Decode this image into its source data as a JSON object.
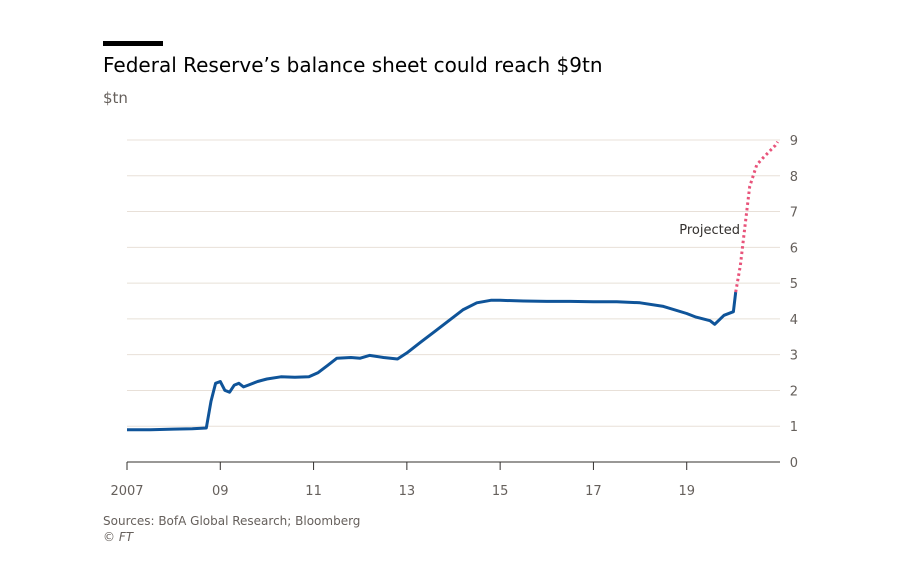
{
  "chart_data": {
    "type": "line",
    "title": "Federal Reserve’s balance sheet could reach $9tn",
    "unit_label": "$tn",
    "x_tick_labels": [
      "2007",
      "09",
      "11",
      "13",
      "15",
      "17",
      "19"
    ],
    "x_tick_values": [
      2007,
      2009,
      2011,
      2013,
      2015,
      2017,
      2019
    ],
    "y_tick_labels": [
      "0",
      "1",
      "2",
      "3",
      "4",
      "5",
      "6",
      "7",
      "8",
      "9"
    ],
    "xlim": [
      2007,
      2020.5
    ],
    "ylim": [
      0,
      9
    ],
    "grid": true,
    "annotations": [
      "Projected"
    ],
    "series": [
      {
        "style": "solid",
        "color": "#0f5499",
        "x": [
          2007.0,
          2007.5,
          2008.0,
          2008.4,
          2008.7,
          2008.8,
          2008.9,
          2009.0,
          2009.1,
          2009.2,
          2009.3,
          2009.4,
          2009.5,
          2009.6,
          2009.8,
          2010.0,
          2010.3,
          2010.6,
          2010.9,
          2011.1,
          2011.3,
          2011.5,
          2011.8,
          2012.0,
          2012.2,
          2012.5,
          2012.8,
          2013.0,
          2013.3,
          2013.6,
          2013.9,
          2014.2,
          2014.5,
          2014.8,
          2015.0,
          2015.5,
          2016.0,
          2016.5,
          2017.0,
          2017.5,
          2018.0,
          2018.5,
          2019.0,
          2019.2,
          2019.5,
          2019.6,
          2019.8,
          2020.0,
          2020.05
        ],
        "values": [
          0.9,
          0.9,
          0.92,
          0.93,
          0.95,
          1.7,
          2.2,
          2.25,
          2.0,
          1.95,
          2.15,
          2.2,
          2.1,
          2.15,
          2.25,
          2.32,
          2.38,
          2.37,
          2.38,
          2.5,
          2.7,
          2.9,
          2.92,
          2.9,
          2.98,
          2.92,
          2.88,
          3.05,
          3.35,
          3.65,
          3.95,
          4.25,
          4.45,
          4.52,
          4.52,
          4.5,
          4.49,
          4.49,
          4.48,
          4.48,
          4.45,
          4.35,
          4.15,
          4.05,
          3.95,
          3.85,
          4.1,
          4.2,
          4.75
        ]
      },
      {
        "style": "dotted",
        "color": "#e8537a",
        "x": [
          2020.05,
          2020.15,
          2020.25,
          2020.35,
          2020.5,
          2020.6,
          2020.75,
          2020.9,
          2020.95
        ],
        "values": [
          4.75,
          5.5,
          6.6,
          7.7,
          8.3,
          8.45,
          8.65,
          8.85,
          8.95
        ]
      }
    ]
  },
  "footer": {
    "sources": "Sources: BofA Global Research; Bloomberg",
    "copyright": "© FT"
  },
  "colors": {
    "gridline": "#e8e0d8",
    "axis": "#33302e",
    "tick_text": "#66605c",
    "history_line": "#0f5499",
    "projection_line": "#e8537a"
  }
}
